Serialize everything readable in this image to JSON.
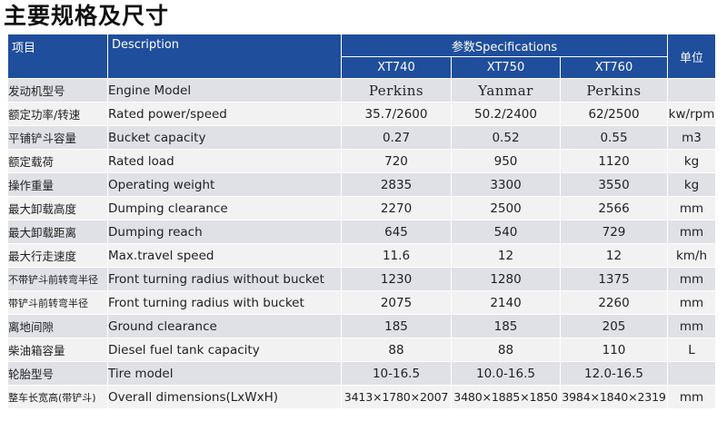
{
  "title": "主要规格及尺寸",
  "header": {
    "col_item": "项目",
    "col_description": "Description",
    "col_specifications": "参数Specifications",
    "col_unit": "单位",
    "models": [
      "XT740",
      "XT750",
      "XT760"
    ]
  },
  "rows": [
    {
      "cn": "发动机型号",
      "en": "Engine Model",
      "v1": "Perkins",
      "v2": "Yanmar",
      "v3": "Perkins",
      "unit": ""
    },
    {
      "cn": "额定功率/转速",
      "en": "Rated power/speed",
      "v1": "35.7/2600",
      "v2": "50.2/2400",
      "v3": "62/2500",
      "unit": "kw/rpm"
    },
    {
      "cn": "平铺铲斗容量",
      "en": "Bucket capacity",
      "v1": "0.27",
      "v2": "0.52",
      "v3": "0.55",
      "unit": "m3"
    },
    {
      "cn": "额定载荷",
      "en": "Rated load",
      "v1": "720",
      "v2": "950",
      "v3": "1120",
      "unit": "kg"
    },
    {
      "cn": "操作重量",
      "en": "Operating weight",
      "v1": "2835",
      "v2": "3300",
      "v3": "3550",
      "unit": "kg"
    },
    {
      "cn": "最大卸载高度",
      "en": "Dumping clearance",
      "v1": "2270",
      "v2": "2500",
      "v3": "2566",
      "unit": "mm"
    },
    {
      "cn": "最大卸载距离",
      "en": "Dumping reach",
      "v1": "645",
      "v2": "540",
      "v3": "729",
      "unit": "mm"
    },
    {
      "cn": "最大行走速度",
      "en": "Max.travel speed",
      "v1": "11.6",
      "v2": "12",
      "v3": "12",
      "unit": "km/h"
    },
    {
      "cn": "不带铲斗前转弯半径",
      "en": "Front turning radius without bucket",
      "v1": "1230",
      "v2": "1280",
      "v3": "1375",
      "unit": "mm"
    },
    {
      "cn": "带铲斗前转弯半径",
      "en": "Front turning radius with bucket",
      "v1": "2075",
      "v2": "2140",
      "v3": "2260",
      "unit": "mm"
    },
    {
      "cn": "离地间隙",
      "en": "Ground clearance",
      "v1": "185",
      "v2": "185",
      "v3": "205",
      "unit": "mm"
    },
    {
      "cn": "柴油箱容量",
      "en": "Diesel fuel tank capacity",
      "v1": "88",
      "v2": "88",
      "v3": "110",
      "unit": "L"
    },
    {
      "cn": "轮胎型号",
      "en": "Tire model",
      "v1": "10-16.5",
      "v2": "10.0-16.5",
      "v3": "12.0-16.5",
      "unit": ""
    },
    {
      "cn": "整车长宽高(带铲斗)",
      "en": "Overall dimensions(LxWxH)",
      "v1": "3413×1780×2007",
      "v2": "3480×1885×1850",
      "v3": "3984×1840×2319",
      "unit": "mm"
    }
  ]
}
